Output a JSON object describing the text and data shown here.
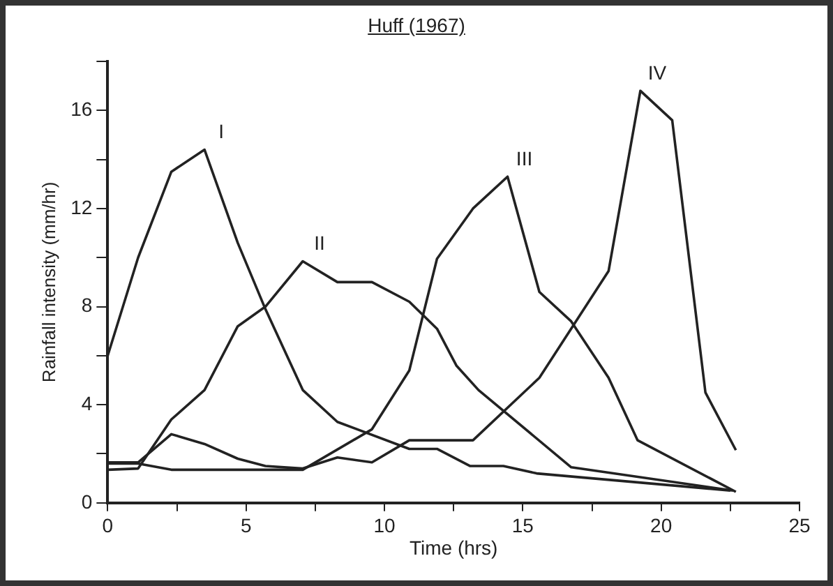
{
  "chart_data": {
    "type": "line",
    "title": "Huff (1967)",
    "xlabel": "Time (hrs)",
    "ylabel": "Rainfall intensity (mm/hr)",
    "xlim": [
      0,
      25
    ],
    "xticks": [
      0,
      {
        "value": 2.5,
        "label": null
      },
      5,
      {
        "value": 7.5,
        "label": null
      },
      10,
      {
        "value": 12.5,
        "label": null
      },
      15,
      {
        "value": 17.5,
        "label": null
      },
      20,
      {
        "value": 22.5,
        "label": null
      },
      25
    ],
    "ylim": [
      0,
      18
    ],
    "yticks": [
      0,
      {
        "value": 2,
        "label": null
      },
      4,
      {
        "value": 6,
        "label": null
      },
      8,
      {
        "value": 10,
        "label": null
      },
      12,
      {
        "value": 14,
        "label": null
      },
      16,
      {
        "value": 18,
        "label": null
      }
    ],
    "grid": false,
    "legend": false,
    "marker": "none",
    "line_style": "solid",
    "series": [
      {
        "name": "I",
        "color": "#222222",
        "x": [
          0,
          1.1,
          2.3,
          3.5,
          4.7,
          5.7,
          7.05,
          8.3,
          10.9,
          11.9,
          13.1,
          14.3,
          15.5,
          22.5
        ],
        "values": [
          6,
          10,
          13.5,
          14.4,
          10.6,
          7.9,
          4.6,
          3.3,
          2.2,
          2.2,
          1.5,
          1.5,
          1.2,
          0.5
        ]
      },
      {
        "name": "II",
        "color": "#222222",
        "x": [
          0,
          1.1,
          2.3,
          3.5,
          4.7,
          5.7,
          7.05,
          8.3,
          9.55,
          10.9,
          11.9,
          12.6,
          13.4,
          16.75,
          22.6
        ],
        "values": [
          1.35,
          1.4,
          3.4,
          4.6,
          7.2,
          8,
          9.85,
          9,
          9,
          8.2,
          7.1,
          5.6,
          4.6,
          1.45,
          0.5
        ]
      },
      {
        "name": "III",
        "color": "#222222",
        "x": [
          0,
          1.1,
          2.3,
          7.05,
          9.55,
          10.9,
          11.9,
          13.2,
          14.45,
          15.6,
          16.75,
          18.1,
          19.15,
          22.7
        ],
        "values": [
          1.6,
          1.6,
          1.35,
          1.35,
          3,
          5.4,
          9.95,
          12,
          13.3,
          8.6,
          7.4,
          5.1,
          2.55,
          0.45
        ]
      },
      {
        "name": "IV",
        "color": "#222222",
        "x": [
          0,
          1.1,
          2.3,
          3.5,
          4.7,
          5.7,
          7.05,
          8.3,
          9.55,
          10.9,
          13.2,
          15.6,
          18.1,
          19.25,
          20.4,
          21.6,
          22.7
        ],
        "values": [
          1.65,
          1.65,
          2.8,
          2.4,
          1.8,
          1.5,
          1.4,
          1.85,
          1.65,
          2.55,
          2.55,
          5.1,
          9.45,
          16.8,
          15.6,
          4.5,
          2.15
        ]
      }
    ]
  }
}
